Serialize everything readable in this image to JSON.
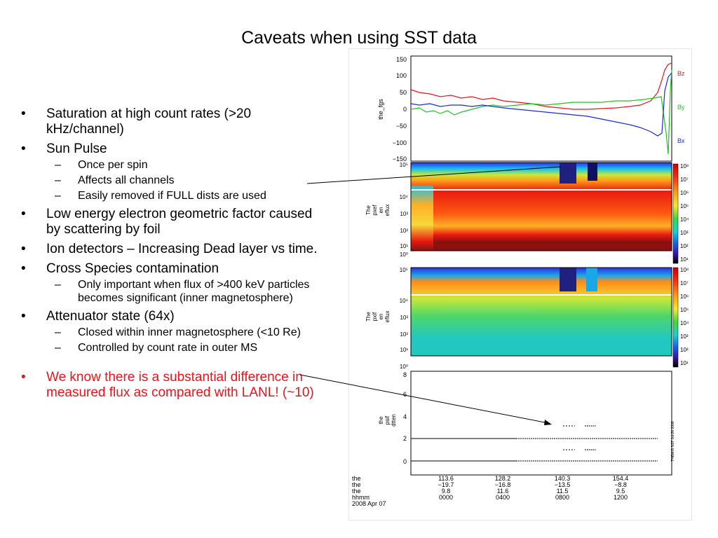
{
  "slide": {
    "title": "Caveats when using SST data",
    "bullets": [
      {
        "text": "Saturation at high count rates (>20 kHz/channel)",
        "children": []
      },
      {
        "text": "Sun Pulse",
        "children": [
          "Once per spin",
          "Affects all channels",
          "Easily removed if FULL dists are used"
        ]
      },
      {
        "text": "Low energy electron geometric factor caused by scattering by foil",
        "children": []
      },
      {
        "text": "Ion detectors – Increasing Dead layer vs time.",
        "children": []
      },
      {
        "text": "Cross Species contamination",
        "children": [
          "Only important when flux of >400 keV particles becomes significant (inner magnetosphere)"
        ]
      },
      {
        "text": "Attenuator state (64x)",
        "children": [
          "Closed within inner magnetosphere (<10 Re)",
          "Controlled by count rate in outer MS"
        ]
      }
    ],
    "highlight_bullet": "We know there is a substantial difference in measured flux as compared with LANL!  (~10)",
    "colors": {
      "highlight": "#e8141b",
      "bz": "#e8141b",
      "by": "#1fc51f",
      "bx": "#1a2bd6"
    }
  },
  "figure": {
    "panel1": {
      "ylabel": "the_fgs",
      "ticks": [
        "150",
        "100",
        "50",
        "0",
        "−50",
        "−100",
        "−150"
      ],
      "legend": [
        "Bz",
        "By",
        "Bx"
      ]
    },
    "panel2": {
      "ylabel": [
        "The",
        "pxef",
        "en",
        "eflux"
      ],
      "ticks": [
        "10⁵",
        "10⁴",
        "10³",
        "10²",
        "10¹",
        "10⁰"
      ],
      "colorbar": [
        "10⁸",
        "10⁷",
        "10⁶",
        "10⁵",
        "10⁴",
        "10³",
        "10²",
        "10¹"
      ]
    },
    "panel3": {
      "ylabel": [
        "The",
        "pxif",
        "en",
        "eflux"
      ],
      "ticks": [
        "10⁵",
        "10⁴",
        "10³",
        "10²",
        "10¹",
        "10⁰"
      ],
      "colorbar": [
        "10⁸",
        "10⁷",
        "10⁶",
        "10⁵",
        "10⁴",
        "10³",
        "10²",
        "10¹"
      ]
    },
    "panel4": {
      "ylabel": [
        "the",
        "psif",
        "dtten"
      ],
      "ticks": [
        "8",
        "6",
        "4",
        "2",
        "0"
      ],
      "side_text": "THEMIS SST Jul-26 2008"
    },
    "xaxis": {
      "row_labels": [
        "the",
        "the",
        "the",
        "hhmm"
      ],
      "date": "2008 Apr 07",
      "columns": [
        [
          "113.6",
          "−19.7",
          "9.8",
          "0000"
        ],
        [
          "128.2",
          "−16.8",
          "11.6",
          "0400"
        ],
        [
          "140.3",
          "−13.5",
          "11.5",
          "0800"
        ],
        [
          "154.4",
          "−8.8",
          "9.5",
          "1200"
        ]
      ]
    }
  }
}
